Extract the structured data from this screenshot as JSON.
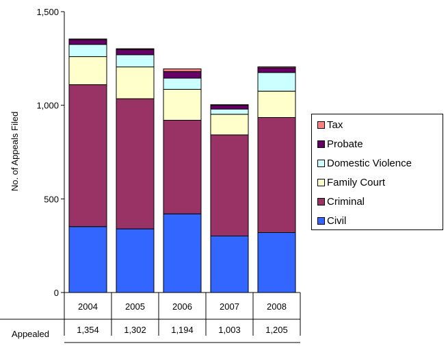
{
  "chart_data": {
    "type": "bar",
    "stacked": true,
    "categories": [
      "2004",
      "2005",
      "2006",
      "2007",
      "2008"
    ],
    "series": [
      {
        "name": "Civil",
        "color": "#3366FF",
        "values": [
          352,
          340,
          420,
          302,
          320
        ]
      },
      {
        "name": "Criminal",
        "color": "#993366",
        "values": [
          758,
          695,
          500,
          540,
          615
        ]
      },
      {
        "name": "Family Court",
        "color": "#FFFFCC",
        "values": [
          150,
          170,
          165,
          110,
          140
        ]
      },
      {
        "name": "Domestic Violence",
        "color": "#CCFFFF",
        "values": [
          65,
          65,
          60,
          28,
          100
        ]
      },
      {
        "name": "Probate",
        "color": "#660066",
        "values": [
          25,
          28,
          35,
          20,
          25
        ]
      },
      {
        "name": "Tax",
        "color": "#FF8080",
        "values": [
          4,
          4,
          14,
          3,
          5
        ]
      }
    ],
    "ylabel": "No. of Appeals Filed",
    "xlabel": "",
    "ylim": [
      0,
      1500
    ],
    "yticks": [
      "0",
      "500",
      "1,000",
      "1,500"
    ],
    "yticks_values": [
      0,
      500,
      1000,
      1500
    ],
    "grid": false,
    "legend": "right",
    "table": {
      "row_label": "Appealed",
      "values": [
        "1,354",
        "1,302",
        "1,194",
        "1,003",
        "1,205"
      ]
    }
  }
}
